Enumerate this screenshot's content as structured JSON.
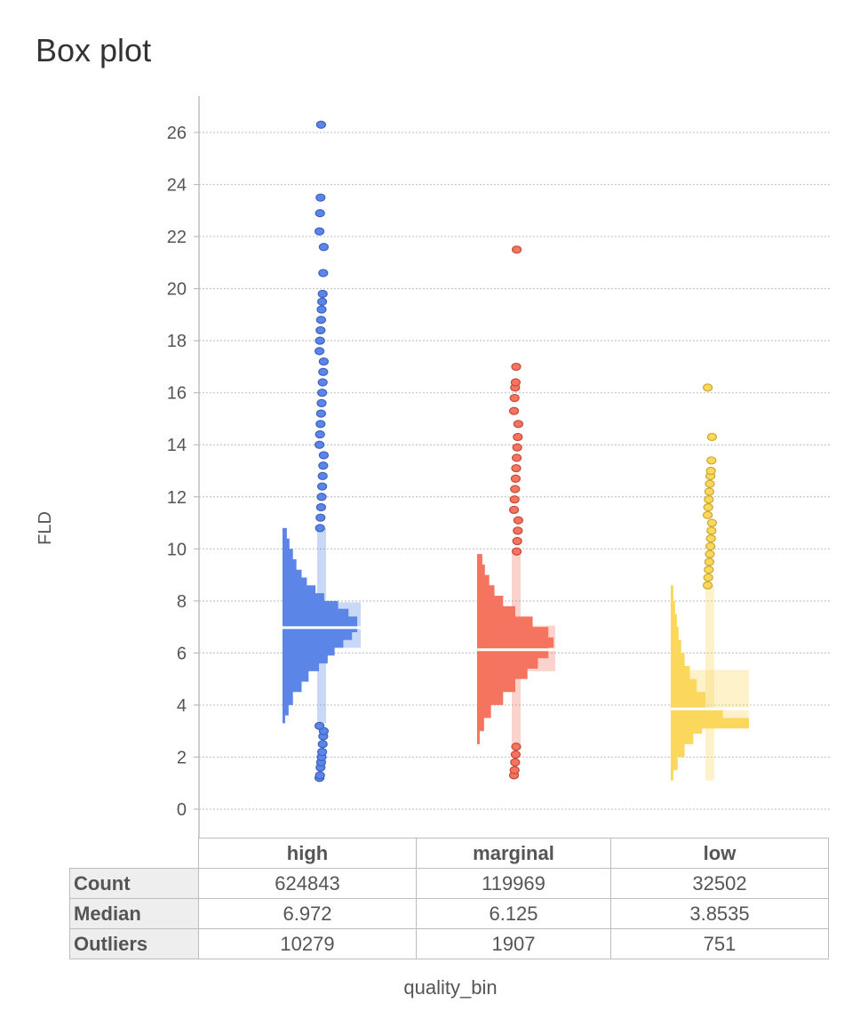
{
  "title": "Box plot",
  "chart_data": {
    "type": "box",
    "ylabel": "FLD",
    "xlabel": "quality_bin",
    "ylim": [
      -1,
      27
    ],
    "yticks": [
      0,
      2,
      4,
      6,
      8,
      10,
      12,
      14,
      16,
      18,
      20,
      22,
      24,
      26
    ],
    "grid": true,
    "categories": [
      "high",
      "marginal",
      "low"
    ],
    "colors": {
      "high": "#5b86e8",
      "marginal": "#f47460",
      "low": "#fbd85c"
    },
    "boxes": [
      {
        "name": "high",
        "min": 1.1,
        "q1": 6.2,
        "median": 6.972,
        "q3": 7.95,
        "max": 10.8,
        "whisker_low": 3.3,
        "whisker_high": 10.8,
        "outliers": [
          1.2,
          1.3,
          1.6,
          1.8,
          2.0,
          2.2,
          2.5,
          2.8,
          3.0,
          3.2,
          10.8,
          11.2,
          11.6,
          12.0,
          12.4,
          12.8,
          13.2,
          13.6,
          14.0,
          14.4,
          14.8,
          15.2,
          15.6,
          16.0,
          16.4,
          16.8,
          17.2,
          17.6,
          18.0,
          18.4,
          18.8,
          19.2,
          19.5,
          19.8,
          20.6,
          21.6,
          22.2,
          22.9,
          23.5,
          26.3
        ]
      },
      {
        "name": "marginal",
        "min": 1.2,
        "q1": 5.3,
        "median": 6.125,
        "q3": 7.05,
        "max": 9.8,
        "whisker_low": 2.5,
        "whisker_high": 9.8,
        "outliers": [
          1.3,
          1.5,
          1.8,
          2.1,
          2.4,
          9.9,
          10.3,
          10.7,
          11.1,
          11.5,
          11.9,
          12.3,
          12.7,
          13.1,
          13.5,
          13.9,
          14.3,
          14.8,
          15.3,
          15.8,
          16.2,
          16.4,
          17.0,
          21.5
        ]
      },
      {
        "name": "low",
        "min": 1.1,
        "q1": 3.25,
        "median": 3.8535,
        "q3": 5.35,
        "max": 8.6,
        "whisker_low": 1.1,
        "whisker_high": 8.6,
        "outliers": [
          8.6,
          8.9,
          9.2,
          9.5,
          9.8,
          10.1,
          10.4,
          10.7,
          11.0,
          11.3,
          11.6,
          11.9,
          12.2,
          12.5,
          12.8,
          13.0,
          13.4,
          14.3,
          16.2
        ]
      }
    ],
    "histograms": {
      "high": [
        [
          3.3,
          3
        ],
        [
          3.6,
          7
        ],
        [
          4.0,
          12
        ],
        [
          4.5,
          22
        ],
        [
          4.9,
          30
        ],
        [
          5.3,
          42
        ],
        [
          5.6,
          52
        ],
        [
          5.9,
          60
        ],
        [
          6.2,
          70
        ],
        [
          6.5,
          80
        ],
        [
          6.8,
          86
        ],
        [
          7.1,
          86
        ],
        [
          7.4,
          76
        ],
        [
          7.7,
          64
        ],
        [
          8.0,
          48
        ],
        [
          8.3,
          38
        ],
        [
          8.6,
          28
        ],
        [
          8.9,
          22
        ],
        [
          9.2,
          16
        ],
        [
          9.6,
          12
        ],
        [
          10.0,
          8
        ],
        [
          10.4,
          5
        ],
        [
          10.8,
          0
        ]
      ],
      "marginal": [
        [
          2.5,
          3
        ],
        [
          3.0,
          8
        ],
        [
          3.5,
          16
        ],
        [
          4.0,
          30
        ],
        [
          4.5,
          44
        ],
        [
          5.0,
          58
        ],
        [
          5.4,
          70
        ],
        [
          5.8,
          82
        ],
        [
          6.2,
          88
        ],
        [
          6.6,
          82
        ],
        [
          7.0,
          64
        ],
        [
          7.4,
          44
        ],
        [
          7.8,
          30
        ],
        [
          8.2,
          20
        ],
        [
          8.6,
          14
        ],
        [
          9.0,
          9
        ],
        [
          9.4,
          6
        ],
        [
          9.8,
          0
        ]
      ],
      "low": [
        [
          1.1,
          3
        ],
        [
          1.5,
          8
        ],
        [
          2.0,
          16
        ],
        [
          2.5,
          26
        ],
        [
          2.9,
          36
        ],
        [
          3.1,
          90
        ],
        [
          3.5,
          60
        ],
        [
          3.9,
          40
        ],
        [
          4.5,
          30
        ],
        [
          5.0,
          22
        ],
        [
          5.5,
          16
        ],
        [
          6.0,
          12
        ],
        [
          6.5,
          9
        ],
        [
          7.0,
          7
        ],
        [
          7.5,
          5
        ],
        [
          8.0,
          3
        ],
        [
          8.6,
          0
        ]
      ]
    }
  },
  "table": {
    "row_labels": [
      "Count",
      "Median",
      "Outliers"
    ],
    "columns": [
      {
        "header": "high",
        "values": [
          "624843",
          "6.972",
          "10279"
        ]
      },
      {
        "header": "marginal",
        "values": [
          "119969",
          "6.125",
          "1907"
        ]
      },
      {
        "header": "low",
        "values": [
          "32502",
          "3.8535",
          "751"
        ]
      }
    ]
  }
}
